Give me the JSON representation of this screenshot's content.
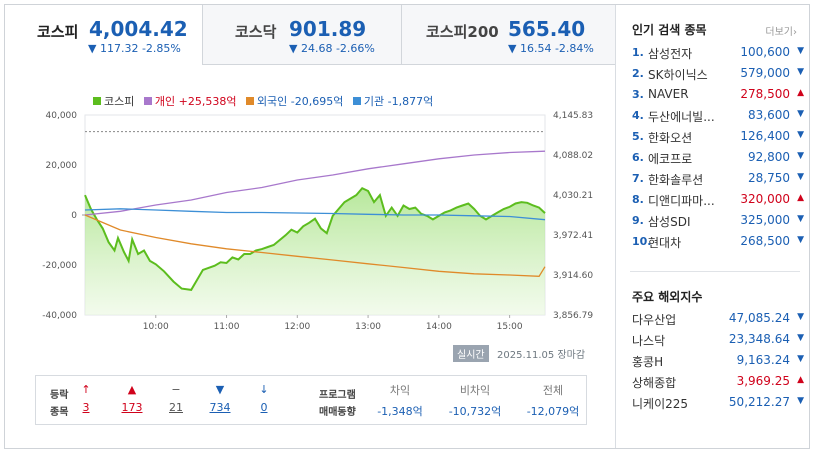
{
  "tabs": [
    {
      "name": "코스피",
      "value": "4,004.42",
      "change": "▼ 117.32 -2.85%"
    },
    {
      "name": "코스닥",
      "value": "901.89",
      "change": "▼ 24.68 -2.66%"
    },
    {
      "name": "코스피200",
      "value": "565.40",
      "change": "▼ 16.54 -2.84%"
    }
  ],
  "legend": {
    "kospi": "코스피",
    "individual": "개인 +25,538억",
    "foreign": "외국인 -20,695억",
    "institution": "기관 -1,877억"
  },
  "colors": {
    "kospi": "#5cbd1e",
    "individual": "#a878cc",
    "foreign": "#e08a2a",
    "institution": "#3d8fd6",
    "down": "#1b5fb3",
    "up": "#d0021b"
  },
  "chart_data": {
    "type": "line",
    "x_ticks": [
      "10:00",
      "11:00",
      "12:00",
      "13:00",
      "14:00",
      "15:00"
    ],
    "left_ticks": [
      "40,000",
      "20,000",
      "0",
      "-20,000",
      "-40,000"
    ],
    "right_ticks": [
      "4,145.83",
      "4,088.02",
      "4,030.21",
      "3,972.41",
      "3,914.60",
      "3,856.79"
    ],
    "left_ylim": [
      -40000,
      40000
    ],
    "right_ylim": [
      3856.79,
      4145.83
    ],
    "prev_close": 4121.74,
    "time_range": [
      "09:00",
      "15:30"
    ],
    "series": [
      {
        "name": "코스피",
        "axis": "right",
        "points": [
          [
            "09:00",
            4030
          ],
          [
            "09:05",
            4010
          ],
          [
            "09:10",
            3995
          ],
          [
            "09:15",
            3982
          ],
          [
            "09:20",
            3962
          ],
          [
            "09:25",
            3950
          ],
          [
            "09:28",
            3968
          ],
          [
            "09:33",
            3948
          ],
          [
            "09:37",
            3935
          ],
          [
            "09:40",
            3966
          ],
          [
            "09:45",
            3945
          ],
          [
            "09:50",
            3950
          ],
          [
            "09:55",
            3935
          ],
          [
            "10:00",
            3930
          ],
          [
            "10:07",
            3920
          ],
          [
            "10:15",
            3905
          ],
          [
            "10:22",
            3895
          ],
          [
            "10:30",
            3893
          ],
          [
            "10:40",
            3922
          ],
          [
            "10:50",
            3928
          ],
          [
            "10:55",
            3933
          ],
          [
            "11:00",
            3932
          ],
          [
            "11:05",
            3940
          ],
          [
            "11:10",
            3937
          ],
          [
            "11:15",
            3945
          ],
          [
            "11:20",
            3945
          ],
          [
            "11:25",
            3950
          ],
          [
            "11:30",
            3952
          ],
          [
            "11:35",
            3955
          ],
          [
            "11:40",
            3958
          ],
          [
            "11:45",
            3965
          ],
          [
            "11:50",
            3972
          ],
          [
            "11:55",
            3980
          ],
          [
            "12:00",
            3976
          ],
          [
            "12:05",
            3985
          ],
          [
            "12:10",
            3990
          ],
          [
            "12:15",
            3996
          ],
          [
            "12:20",
            3982
          ],
          [
            "12:25",
            3975
          ],
          [
            "12:30",
            4000
          ],
          [
            "12:35",
            4010
          ],
          [
            "12:40",
            4020
          ],
          [
            "12:45",
            4025
          ],
          [
            "12:50",
            4030
          ],
          [
            "12:55",
            4040
          ],
          [
            "13:00",
            4036
          ],
          [
            "13:05",
            4020
          ],
          [
            "13:10",
            4030
          ],
          [
            "13:15",
            4000
          ],
          [
            "13:20",
            4012
          ],
          [
            "13:25",
            4000
          ],
          [
            "13:30",
            4015
          ],
          [
            "13:35",
            4010
          ],
          [
            "13:40",
            4012
          ],
          [
            "13:45",
            4003
          ],
          [
            "13:50",
            4000
          ],
          [
            "13:55",
            3995
          ],
          [
            "14:00",
            4000
          ],
          [
            "14:05",
            4005
          ],
          [
            "14:10",
            4008
          ],
          [
            "14:15",
            4012
          ],
          [
            "14:20",
            4015
          ],
          [
            "14:25",
            4018
          ],
          [
            "14:30",
            4010
          ],
          [
            "14:35",
            4000
          ],
          [
            "14:40",
            3995
          ],
          [
            "14:45",
            4000
          ],
          [
            "14:50",
            4005
          ],
          [
            "14:55",
            4010
          ],
          [
            "15:00",
            4013
          ],
          [
            "15:05",
            4018
          ],
          [
            "15:10",
            4020
          ],
          [
            "15:15",
            4019
          ],
          [
            "15:20",
            4015
          ],
          [
            "15:25",
            4012
          ],
          [
            "15:30",
            4004
          ]
        ]
      },
      {
        "name": "개인",
        "axis": "left",
        "points": [
          [
            "09:00",
            0
          ],
          [
            "09:30",
            1500
          ],
          [
            "10:00",
            4000
          ],
          [
            "10:30",
            6000
          ],
          [
            "11:00",
            9000
          ],
          [
            "11:30",
            11000
          ],
          [
            "12:00",
            14000
          ],
          [
            "12:30",
            16000
          ],
          [
            "13:00",
            18500
          ],
          [
            "13:30",
            20500
          ],
          [
            "14:00",
            22500
          ],
          [
            "14:30",
            24000
          ],
          [
            "15:00",
            25000
          ],
          [
            "15:30",
            25538
          ]
        ]
      },
      {
        "name": "외국인",
        "axis": "left",
        "points": [
          [
            "09:00",
            0
          ],
          [
            "09:15",
            -3000
          ],
          [
            "09:30",
            -6000
          ],
          [
            "10:00",
            -9000
          ],
          [
            "10:30",
            -11500
          ],
          [
            "11:00",
            -13500
          ],
          [
            "11:30",
            -15000
          ],
          [
            "12:00",
            -16500
          ],
          [
            "12:30",
            -18000
          ],
          [
            "13:00",
            -19500
          ],
          [
            "13:30",
            -21000
          ],
          [
            "14:00",
            -22500
          ],
          [
            "14:30",
            -23500
          ],
          [
            "15:00",
            -24000
          ],
          [
            "15:25",
            -24500
          ],
          [
            "15:30",
            -20695
          ]
        ]
      },
      {
        "name": "기관",
        "axis": "left",
        "points": [
          [
            "09:00",
            2000
          ],
          [
            "09:30",
            2500
          ],
          [
            "10:00",
            2000
          ],
          [
            "10:30",
            1500
          ],
          [
            "11:00",
            1000
          ],
          [
            "11:30",
            1000
          ],
          [
            "12:00",
            800
          ],
          [
            "12:30",
            600
          ],
          [
            "13:00",
            300
          ],
          [
            "13:30",
            0
          ],
          [
            "14:00",
            0
          ],
          [
            "14:30",
            -300
          ],
          [
            "15:00",
            -600
          ],
          [
            "15:30",
            -1877
          ]
        ]
      }
    ]
  },
  "status": {
    "live": "실시간",
    "date": "2025.11.05 장마감"
  },
  "stats": {
    "label_line1": "등락",
    "label_line2": "종목",
    "items": [
      {
        "icon": "↑",
        "value": "3",
        "dir": "up"
      },
      {
        "icon": "▲",
        "value": "173",
        "dir": "up"
      },
      {
        "icon": "−",
        "value": "21",
        "dir": "flat"
      },
      {
        "icon": "▼",
        "value": "734",
        "dir": "down"
      },
      {
        "icon": "↓",
        "value": "0",
        "dir": "down"
      }
    ],
    "program_line1": "프로그램",
    "program_line2": "매매동향",
    "program": [
      {
        "label": "차익",
        "value": "-1,348억"
      },
      {
        "label": "비차익",
        "value": "-10,732억"
      },
      {
        "label": "전체",
        "value": "-12,079억"
      }
    ]
  },
  "popular": {
    "title": "인기 검색 종목",
    "more": "더보기",
    "items": [
      {
        "rank": "1.",
        "name": "삼성전자",
        "price": "100,600",
        "dir": "down"
      },
      {
        "rank": "2.",
        "name": "SK하이닉스",
        "price": "579,000",
        "dir": "down"
      },
      {
        "rank": "3.",
        "name": "NAVER",
        "price": "278,500",
        "dir": "up"
      },
      {
        "rank": "4.",
        "name": "두산에너빌...",
        "price": "83,600",
        "dir": "down"
      },
      {
        "rank": "5.",
        "name": "한화오션",
        "price": "126,400",
        "dir": "down"
      },
      {
        "rank": "6.",
        "name": "에코프로",
        "price": "92,800",
        "dir": "down"
      },
      {
        "rank": "7.",
        "name": "한화솔루션",
        "price": "28,750",
        "dir": "down"
      },
      {
        "rank": "8.",
        "name": "디앤디파마...",
        "price": "320,000",
        "dir": "up"
      },
      {
        "rank": "9.",
        "name": "삼성SDI",
        "price": "325,000",
        "dir": "down"
      },
      {
        "rank": "10.",
        "name": "현대차",
        "price": "268,500",
        "dir": "down"
      }
    ]
  },
  "world": {
    "title": "주요 해외지수",
    "items": [
      {
        "name": "다우산업",
        "price": "47,085.24",
        "dir": "down"
      },
      {
        "name": "나스닥",
        "price": "23,348.64",
        "dir": "down"
      },
      {
        "name": "홍콩H",
        "price": "9,163.24",
        "dir": "down"
      },
      {
        "name": "상해종합",
        "price": "3,969.25",
        "dir": "up"
      },
      {
        "name": "니케이225",
        "price": "50,212.27",
        "dir": "down"
      }
    ]
  }
}
